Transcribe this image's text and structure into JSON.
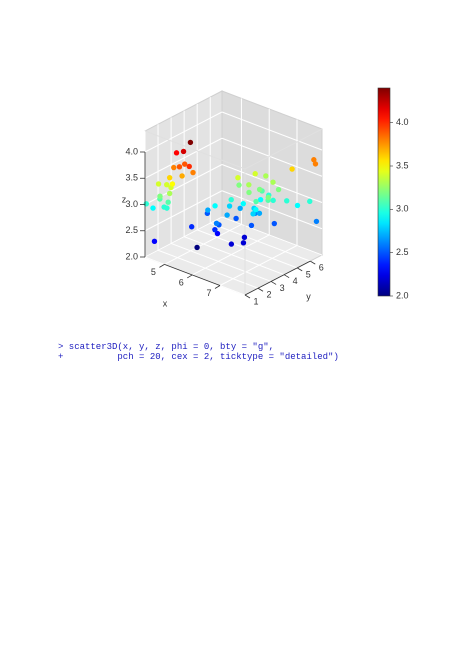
{
  "chart_data": {
    "type": "scatter3d",
    "xlabel": "x",
    "ylabel": "y",
    "zlabel": "z",
    "x": [
      5.1,
      4.9,
      4.7,
      4.6,
      5.0,
      5.4,
      4.6,
      5.0,
      4.4,
      4.9,
      5.4,
      4.8,
      4.8,
      4.3,
      5.8,
      5.7,
      5.4,
      5.7,
      5.1,
      5.2,
      5.5,
      4.5,
      5.0,
      7.0,
      6.4,
      6.9,
      5.5,
      6.5,
      5.7,
      6.3,
      4.9,
      6.6,
      5.2,
      5.0,
      5.9,
      6.0,
      6.1,
      5.6,
      6.7,
      5.8,
      6.2,
      5.6,
      5.9,
      6.3,
      6.0,
      5.5,
      5.7,
      6.3,
      5.8,
      7.1,
      6.3,
      6.5,
      7.6,
      4.9,
      7.3,
      6.7,
      7.2,
      6.5,
      6.4,
      6.8,
      5.7,
      7.7,
      7.7,
      6.0,
      6.9,
      7.9,
      6.3,
      6.1,
      6.4,
      6.7,
      6.2
    ],
    "y": [
      1.4,
      1.4,
      1.3,
      1.5,
      1.4,
      1.7,
      1.4,
      1.5,
      1.4,
      1.5,
      1.5,
      1.6,
      1.4,
      1.1,
      1.2,
      1.5,
      1.3,
      1.7,
      1.5,
      1.5,
      1.4,
      1.3,
      1.4,
      4.7,
      4.5,
      4.9,
      4.0,
      4.6,
      4.5,
      4.7,
      3.3,
      4.6,
      3.9,
      3.5,
      4.2,
      4.0,
      4.7,
      3.6,
      4.4,
      4.1,
      4.5,
      3.9,
      4.8,
      4.9,
      4.5,
      3.8,
      3.5,
      6.0,
      5.1,
      5.9,
      5.6,
      5.8,
      6.6,
      4.5,
      6.3,
      5.8,
      6.1,
      5.1,
      5.3,
      5.5,
      5.0,
      6.7,
      6.9,
      5.0,
      5.7,
      6.4,
      5.1,
      5.6,
      5.5,
      5.7,
      5.4
    ],
    "z": [
      3.5,
      3.0,
      3.2,
      3.1,
      3.6,
      3.9,
      3.4,
      3.4,
      2.9,
      3.1,
      3.7,
      3.4,
      3.0,
      3.0,
      4.0,
      4.4,
      3.9,
      3.8,
      3.8,
      4.1,
      4.2,
      2.3,
      3.3,
      3.2,
      3.2,
      3.1,
      2.3,
      2.8,
      2.8,
      3.3,
      2.4,
      2.9,
      2.7,
      2.0,
      3.0,
      2.2,
      2.9,
      2.9,
      3.1,
      2.7,
      2.2,
      2.5,
      3.2,
      2.5,
      3.4,
      2.4,
      2.6,
      3.3,
      2.7,
      3.0,
      2.9,
      3.0,
      3.0,
      2.5,
      2.9,
      2.5,
      3.6,
      3.2,
      2.7,
      3.0,
      2.5,
      3.8,
      2.6,
      2.2,
      3.2,
      3.8,
      2.8,
      2.6,
      3.1,
      3.3,
      3.4
    ],
    "xlim": [
      4.3,
      7.9
    ],
    "ylim": [
      1,
      6.9
    ],
    "zlim": [
      2,
      4.4
    ],
    "xticks": [
      5,
      6,
      7
    ],
    "yticks": [
      1,
      2,
      3,
      4,
      5,
      6
    ],
    "zticks": [
      {
        "value": 2,
        "label": "2.0"
      },
      {
        "value": 2.5,
        "label": "2.5"
      },
      {
        "value": 3,
        "label": "3.0"
      },
      {
        "value": 3.5,
        "label": "3.5"
      },
      {
        "value": 4,
        "label": "4.0"
      }
    ],
    "colorbar": {
      "lim": [
        2,
        4.4
      ],
      "ticks": [
        {
          "value": 2,
          "label": "2.0"
        },
        {
          "value": 2.5,
          "label": "2.5"
        },
        {
          "value": 3,
          "label": "3.0"
        },
        {
          "value": 3.5,
          "label": "3.5"
        },
        {
          "value": 4,
          "label": "4.0"
        }
      ]
    },
    "grid": true
  },
  "code": {
    "lines": [
      "> scatter3D(x, y, z, phi = 0, bty = \"g\",",
      "+          pch = 20, cex = 2, ticktype = \"detailed\")"
    ]
  }
}
